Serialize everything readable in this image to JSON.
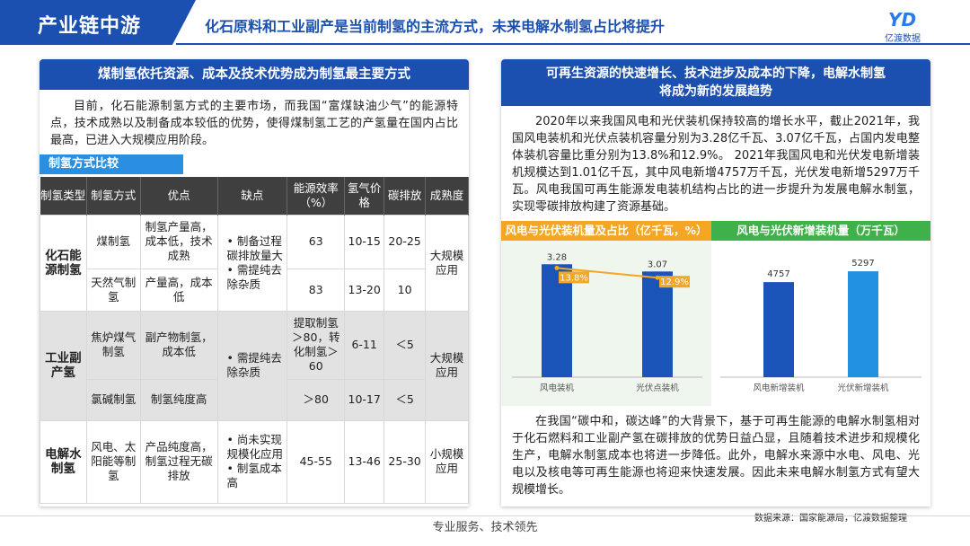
{
  "header": {
    "tag": "产业链中游",
    "title": "化石原料和工业副产是当前制氢的主流方式，未来电解水制氢占比将提升",
    "logo_text": "亿渡数据"
  },
  "left": {
    "heading": "煤制氢依托资源、成本及技术优势成为制氢最主要方式",
    "paragraph": "目前，化石能源制氢方式的主要市场，而我国“富煤缺油少气”的能源特点，技术成熟以及制备成本较低的优势，使得煤制氢工艺的产氢量在国内占比最高，已进入大规模应用阶段。",
    "table_tag": "制氢方式比较",
    "table": {
      "headers": [
        "制氢类型",
        "制氢方式",
        "优点",
        "缺点",
        "能源效率（%）",
        "氢气价格",
        "碳排放",
        "成熟度"
      ],
      "groups": [
        {
          "type": "化石能源制氢",
          "cons": "• 制备过程碳排放量大\n• 需提纯去除杂质",
          "maturity": "大规模应用",
          "rows": [
            {
              "method": "煤制氢",
              "pros": "制氢产量高，成本低，技术成熟",
              "eff": "63",
              "price": "10-15",
              "carbon": "20-25"
            },
            {
              "method": "天然气制氢",
              "pros": "产量高，成本低",
              "eff": "83",
              "price": "13-20",
              "carbon": "10"
            }
          ]
        },
        {
          "type": "工业副产氢",
          "cons": "• 需提纯去除杂质",
          "maturity": "大规模应用",
          "rows": [
            {
              "method": "焦炉煤气制氢",
              "pros": "副产物制氢，成本低",
              "eff": "提取制氢＞80，转化制氢＞60",
              "price": "6-11",
              "carbon": "＜5"
            },
            {
              "method": "氯碱制氢",
              "pros": "制氢纯度高",
              "eff": "＞80",
              "price": "10-17",
              "carbon": "＜5"
            }
          ]
        },
        {
          "type": "电解水制氢",
          "cons": "• 尚未实现规模化应用\n• 制氢成本高",
          "maturity": "小规模应用",
          "rows": [
            {
              "method": "风电、太阳能等制氢",
              "pros": "产品纯度高，制氢过程无碳排放",
              "eff": "45-55",
              "price": "13-46",
              "carbon": "25-30"
            }
          ]
        }
      ]
    }
  },
  "right": {
    "heading_line1": "可再生资源的快速增长、技术进步及成本的下降，电解水制氢",
    "heading_line2": "将成为新的发展趋势",
    "paragraph1": "2020年以来我国风电和光伏装机保持较高的增长水平，截止2021年，我国风电装机和光伏点装机容量分别为3.28亿千瓦、3.07亿千瓦，占国内发电整体装机容量比重分别为13.8%和12.9%。 2021年我国风电和光伏发电新增装机规模达到1.01亿千瓦，其中风电新增4757万千瓦，光伏发电新增5297万千瓦。风电我国可再生能源发电装机结构占比的进一步提升为发展电解水制氢，实现零碳排放构建了资源基础。",
    "paragraph2": "在我国“碳中和，碳达峰”的大背景下，基于可再生能源的电解水制氢相对于化石燃料和工业副产氢在碳排放的优势日益凸显，且随着技术进步和规模化生产，电解水制氢成本也将进一步降低。此外，电解水来源中水电、风电、光电以及核电等可再生能源也将迎来快速发展。因此未来电解水制氢方式有望大规模增长。"
  },
  "chart_data": [
    {
      "type": "bar",
      "title": "风电与光伏装机量及占比（亿千瓦，%）",
      "categories": [
        "风电装机",
        "光伏点装机"
      ],
      "values": [
        3.28,
        3.07
      ],
      "value_labels": [
        "3.28",
        "3.07"
      ],
      "line_values": [
        13.8,
        12.9
      ],
      "line_labels": [
        "13.8%",
        "12.9%"
      ],
      "bar_color": "#1a54b8",
      "line_color": "#f5a623",
      "title_color": "#f5a623"
    },
    {
      "type": "bar",
      "title": "风电与光伏新增装机量（万千瓦）",
      "categories": [
        "风电新增装机",
        "光伏新增装机"
      ],
      "values": [
        4757,
        5297
      ],
      "value_labels": [
        "4757",
        "5297"
      ],
      "colors": [
        "#1a54b8",
        "#2291e0"
      ],
      "title_color": "#3fb14a"
    }
  ],
  "source": "数据来源：国家能源局，亿渡数据整理",
  "footer": "专业服务、技术领先"
}
